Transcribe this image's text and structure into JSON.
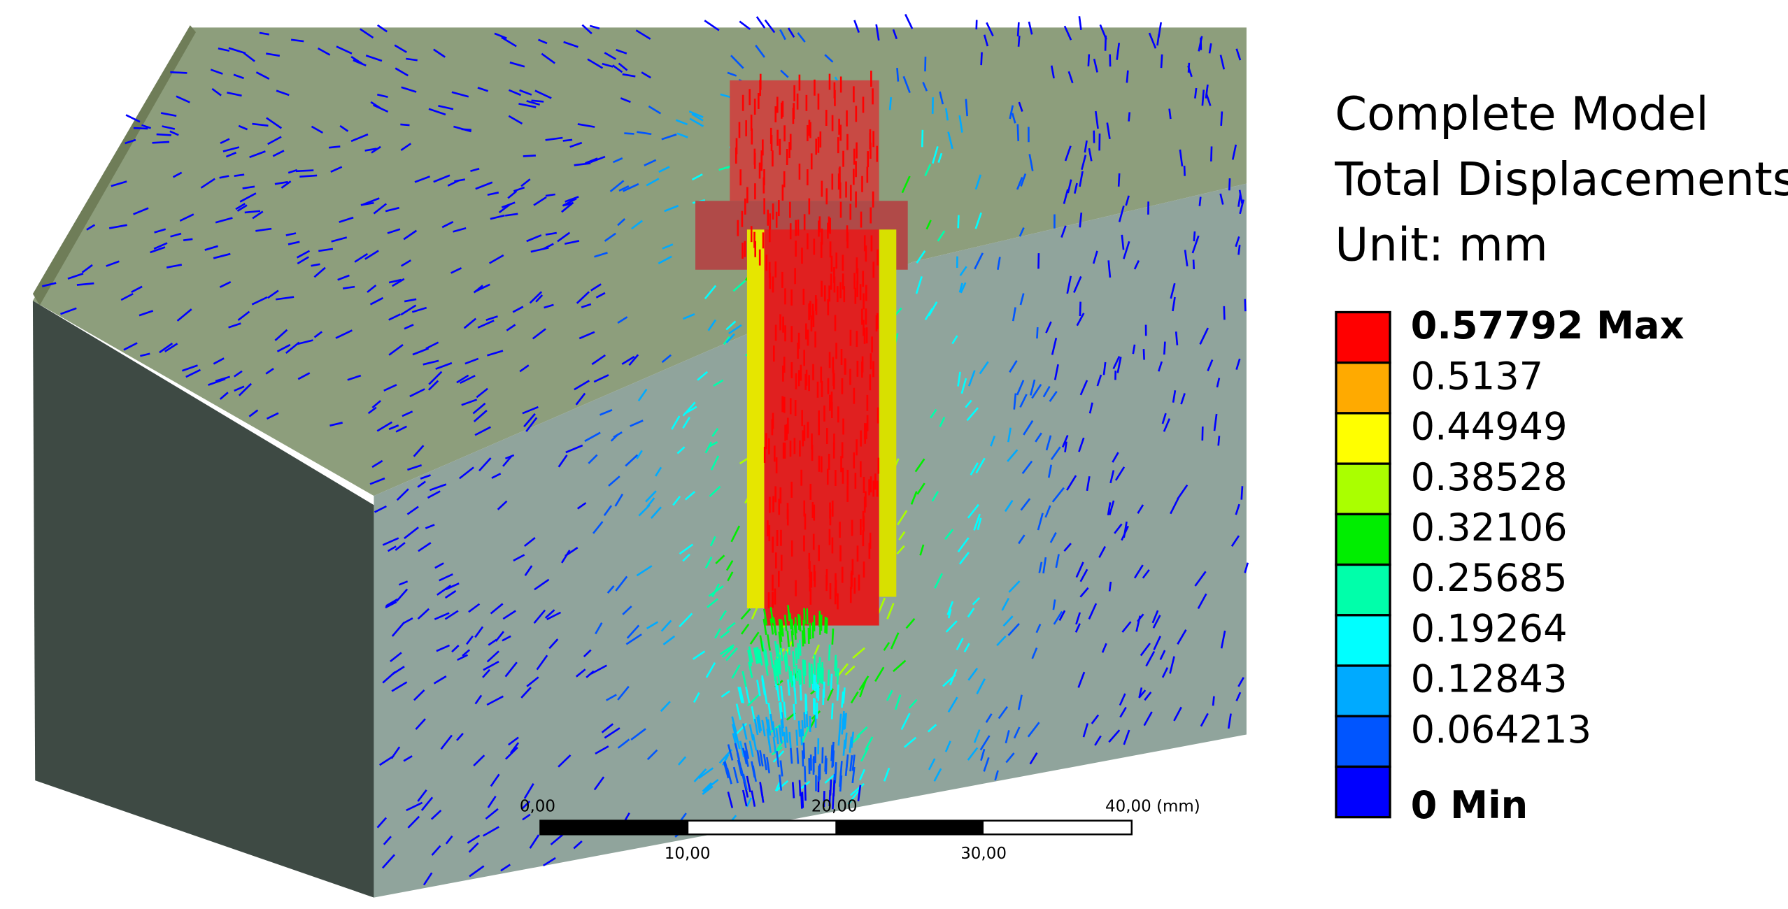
{
  "legend": {
    "title": [
      "Complete Model",
      "Total Displacements",
      "Unit: mm"
    ],
    "levels": [
      {
        "label": "0.57792 Max",
        "color": "#ff0000"
      },
      {
        "label": "0.5137",
        "color": "#ffaa00"
      },
      {
        "label": "0.44949",
        "color": "#ffff00"
      },
      {
        "label": "0.38528",
        "color": "#aaff00"
      },
      {
        "label": "0.32106",
        "color": "#00ee00"
      },
      {
        "label": "0.25685",
        "color": "#00ffaa"
      },
      {
        "label": "0.19264",
        "color": "#00ffff"
      },
      {
        "label": "0.12843",
        "color": "#00aaff"
      },
      {
        "label": "0.064213",
        "color": "#0055ff"
      },
      {
        "label": "0 Min",
        "color": "#0000ff"
      }
    ]
  },
  "scale_bar": {
    "top": [
      "0,00",
      "20,00",
      "40,00 (mm)"
    ],
    "bottom": [
      "10,00",
      "30,00"
    ]
  }
}
